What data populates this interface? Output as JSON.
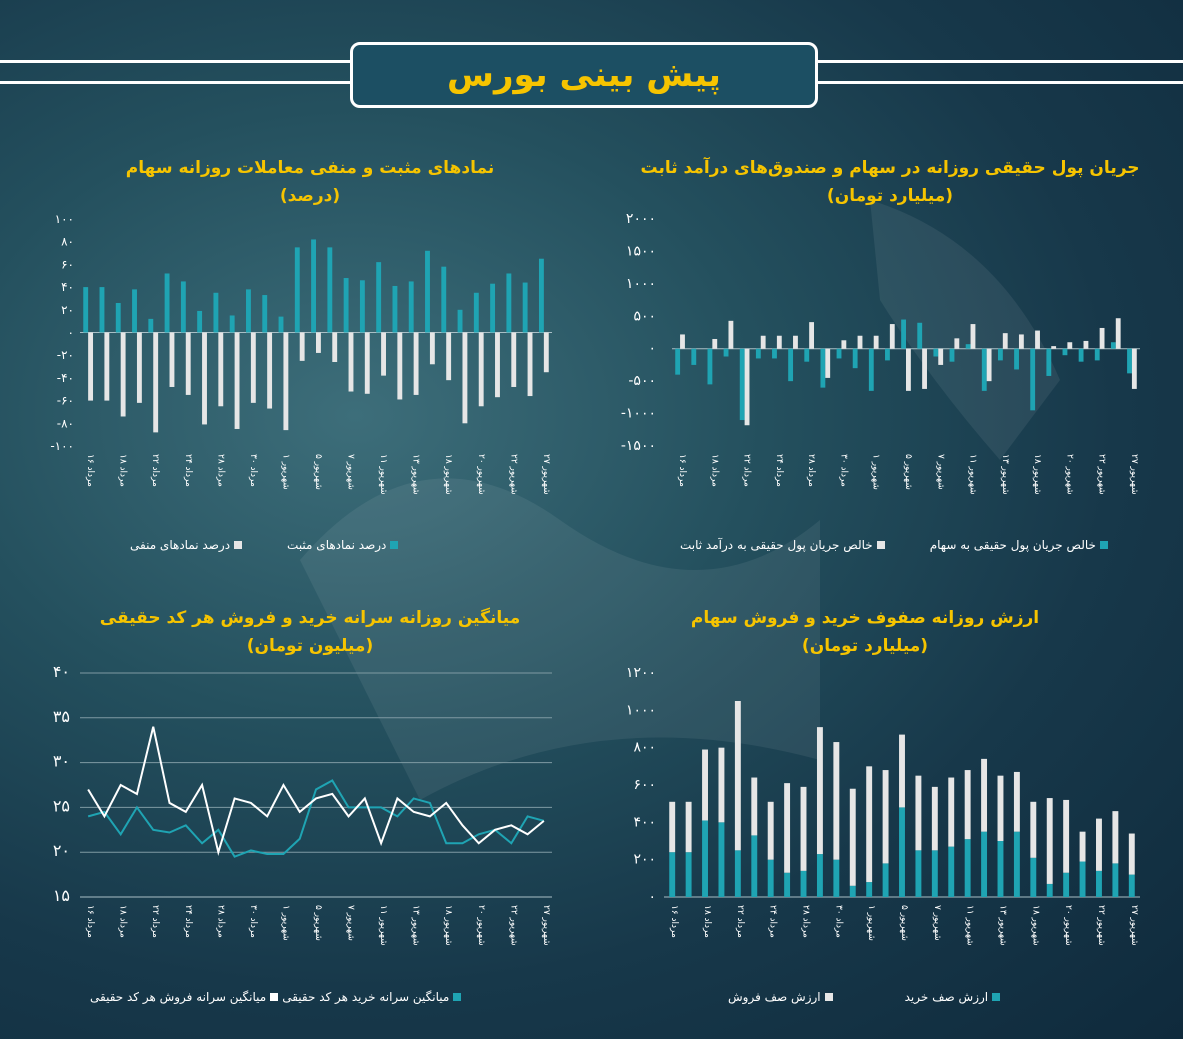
{
  "header": {
    "title": "پیش بینی بورس"
  },
  "colors": {
    "teal": "#1fa4b3",
    "white": "#e6e6e6",
    "accent": "#f6c400",
    "grid": "#8aa5ae"
  },
  "x_categories": [
    "۱۶ مرداد",
    "",
    "۱۸ مرداد",
    "",
    "۲۲ مرداد",
    "",
    "۲۴ مرداد",
    "",
    "۲۸ مرداد",
    "",
    "۳۰ مرداد",
    "",
    "۱ شهریور",
    "",
    "۵ شهریور",
    "",
    "۷ شهریور",
    "",
    "۱۱ شهریور",
    "",
    "۱۳ شهریور",
    "",
    "۱۸ شهریور",
    "",
    "۲۰ شهریور",
    "",
    "۲۲ شهریور",
    "",
    "۲۷ شهریور"
  ],
  "x_categories_short": [
    "۱۶ مرداد",
    "",
    "۱۸ مرداد",
    "",
    "۲۲ مرداد",
    "",
    "۲۴ مرداد",
    "",
    "۲۸ مرداد",
    "",
    "۳۰ مرداد",
    "",
    "۱ شهریور",
    "",
    "۵ شهریور",
    "",
    "۷ شهریور",
    "",
    "۱۱ شهریور",
    "",
    "۱۳ شهریور",
    "",
    "۱۸ شهریور",
    "",
    "۲۰ شهریور",
    "",
    "۲۲ شهریور",
    "",
    "۲۷ شهریور"
  ],
  "chart_data": [
    {
      "id": "flow",
      "type": "bar",
      "title": "جریان پول حقیقی روزانه در سهام و صندوق‌های درآمد ثابت",
      "subtitle": "(میلیارد تومان)",
      "yticks": [
        "۲۰۰۰",
        "۱۵۰۰",
        "۱۰۰۰",
        "۵۰۰",
        "۰",
        "-۵۰۰",
        "-۱۰۰۰",
        "-۱۵۰۰"
      ],
      "ylim": [
        -1500,
        2000
      ],
      "series": [
        {
          "name": "خالص جریان پول حقیقی به سهام",
          "color": "#1fa4b3",
          "values": [
            -400,
            -250,
            -550,
            -120,
            -1100,
            -150,
            -150,
            -500,
            -200,
            -600,
            -150,
            -300,
            -650,
            -180,
            450,
            400,
            -120,
            -200,
            70,
            -650,
            -180,
            -320,
            -950,
            -420,
            -100,
            -200,
            -180,
            100,
            -380
          ]
        },
        {
          "name": "خالص جریان پول حقیقی به درآمد ثابت",
          "color": "#e6e6e6",
          "values": [
            220,
            0,
            150,
            430,
            -1180,
            200,
            200,
            200,
            410,
            -450,
            130,
            200,
            200,
            380,
            -650,
            -620,
            -250,
            160,
            380,
            -500,
            240,
            220,
            280,
            40,
            100,
            120,
            320,
            470,
            -620
          ]
        }
      ]
    },
    {
      "id": "symbols",
      "type": "bar",
      "title": "نمادهای مثبت و منفی معاملات روزانه سهام",
      "subtitle": "(درصد)",
      "yticks": [
        "۱۰۰",
        "۸۰",
        "۶۰",
        "۴۰",
        "۲۰",
        "۰",
        "-۲۰",
        "-۴۰",
        "-۶۰",
        "-۸۰",
        "-۱۰۰"
      ],
      "ylim": [
        -100,
        100
      ],
      "series": [
        {
          "name": "درصد نمادهای مثبت",
          "color": "#1fa4b3",
          "values": [
            40,
            40,
            26,
            38,
            12,
            52,
            45,
            19,
            35,
            15,
            38,
            33,
            14,
            75,
            82,
            75,
            48,
            46,
            62,
            41,
            45,
            72,
            58,
            20,
            35,
            43,
            52,
            44,
            65
          ]
        },
        {
          "name": "درصد نمادهای منفی",
          "color": "#e6e6e6",
          "values": [
            -60,
            -60,
            -74,
            -62,
            -88,
            -48,
            -55,
            -81,
            -65,
            -85,
            -62,
            -67,
            -86,
            -25,
            -18,
            -26,
            -52,
            -54,
            -38,
            -59,
            -55,
            -28,
            -42,
            -80,
            -65,
            -57,
            -48,
            -56,
            -35
          ]
        }
      ]
    },
    {
      "id": "queue",
      "type": "bar",
      "stacked": true,
      "title": "ارزش روزانه صفوف خرید و فروش سهام",
      "subtitle": "(میلیارد تومان)",
      "yticks": [
        "۱۲۰۰",
        "۱۰۰۰",
        "۸۰۰",
        "۶۰۰",
        "۴۰۰",
        "۲۰۰",
        "۰"
      ],
      "ylim": [
        0,
        1200
      ],
      "series": [
        {
          "name": "ارزش صف خرید",
          "color": "#1fa4b3",
          "values": [
            240,
            240,
            410,
            400,
            250,
            330,
            200,
            130,
            140,
            230,
            200,
            60,
            80,
            180,
            480,
            250,
            250,
            270,
            310,
            350,
            300,
            350,
            210,
            70,
            130,
            190,
            140,
            180,
            120
          ]
        },
        {
          "name": "ارزش صف فروش",
          "color": "#e6e6e6",
          "values": [
            270,
            270,
            380,
            400,
            800,
            310,
            310,
            480,
            450,
            680,
            630,
            520,
            620,
            500,
            390,
            400,
            340,
            370,
            370,
            390,
            350,
            320,
            300,
            460,
            390,
            160,
            280,
            280,
            220
          ]
        }
      ]
    },
    {
      "id": "percode",
      "type": "line",
      "title": "میانگین روزانه سرانه خرید و فروش هر کد حقیقی",
      "subtitle": "(میلیون تومان)",
      "yticks": [
        "۴۰",
        "۳۵",
        "۳۰",
        "۲۵",
        "۲۰",
        "۱۵"
      ],
      "ylim": [
        15,
        40
      ],
      "series": [
        {
          "name": "میانگین سرانه خرید هر کد حقیقی",
          "color": "#1fa4b3",
          "values": [
            24,
            24.5,
            22,
            25,
            22.5,
            22.2,
            23,
            21,
            22.5,
            19.5,
            20.2,
            19.8,
            19.8,
            21.5,
            27,
            28,
            25,
            25,
            25,
            24,
            26,
            25.5,
            21,
            21,
            22,
            22.5,
            21,
            24,
            23.5
          ]
        },
        {
          "name": "میانگین سرانه فروش هر کد حقیقی",
          "color": "#ffffff",
          "values": [
            27,
            24,
            27.5,
            26.5,
            34,
            25.5,
            24.5,
            27.5,
            20,
            26,
            25.5,
            24,
            27.5,
            24.5,
            26,
            26.5,
            24,
            26,
            21,
            26,
            24.5,
            24,
            25.5,
            23,
            21,
            22.5,
            23,
            22,
            23.5
          ]
        }
      ]
    }
  ]
}
